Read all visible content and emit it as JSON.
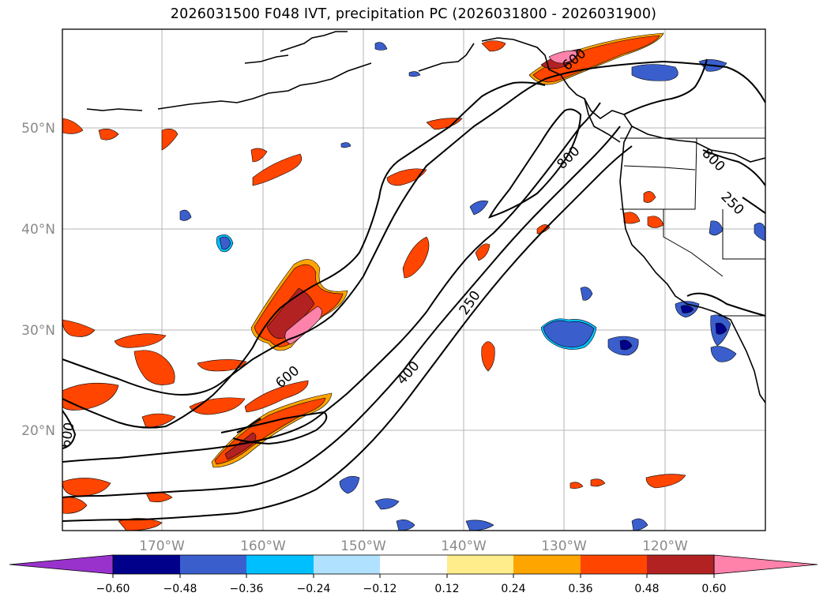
{
  "title": "2026031500 F048 IVT, precipitation PC (2026031800 - 2026031900)",
  "map": {
    "lat_labels": [
      "50°N",
      "40°N",
      "30°N",
      "20°N"
    ],
    "lon_labels": [
      "170°W",
      "160°W",
      "150°W",
      "140°W",
      "130°W",
      "120°W"
    ],
    "contour_labels": [
      "800",
      "600",
      "400",
      "250",
      "600",
      "800",
      "250",
      "600"
    ]
  },
  "colorbar": {
    "ticks": [
      "−0.60",
      "−0.48",
      "−0.36",
      "−0.24",
      "−0.12",
      "0.12",
      "0.24",
      "0.36",
      "0.48",
      "0.60"
    ],
    "colors": [
      "#9932cc",
      "#00008b",
      "#3a5fcd",
      "#00bfff",
      "#b0e2ff",
      "#ffffff",
      "#ffec8b",
      "#ffa500",
      "#ff4500",
      "#b22222",
      "#ff82ab",
      "#ff82ab"
    ]
  }
}
